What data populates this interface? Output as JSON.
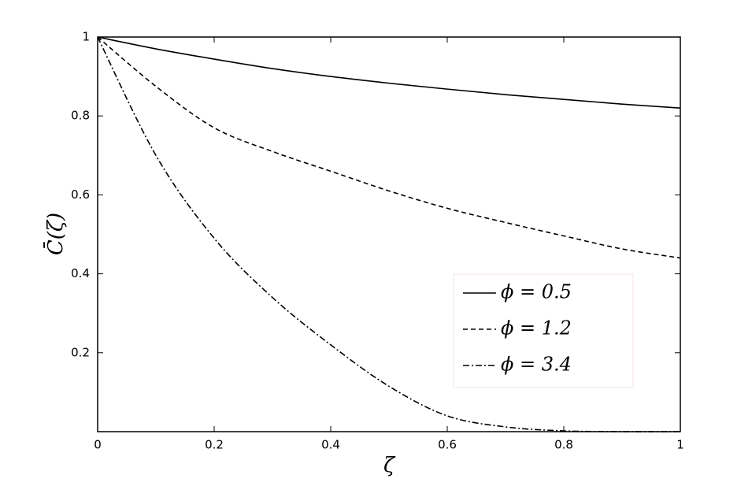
{
  "chart_data": {
    "type": "line",
    "xlabel": "ζ",
    "ylabel": "C̄(ζ)",
    "x": [
      0,
      0.1,
      0.2,
      0.3,
      0.4,
      0.5,
      0.6,
      0.7,
      0.8,
      0.9,
      1
    ],
    "series": [
      {
        "name": "ϕ = 0.5",
        "color": "#000000",
        "dash": "solid",
        "values": [
          1,
          0.97,
          0.944,
          0.92,
          0.9,
          0.883,
          0.868,
          0.854,
          0.842,
          0.83,
          0.82
        ]
      },
      {
        "name": "ϕ = 1.2",
        "color": "#000000",
        "dash": "dashed",
        "values": [
          1,
          0.875,
          0.77,
          0.71,
          0.66,
          0.61,
          0.566,
          0.53,
          0.496,
          0.463,
          0.44
        ]
      },
      {
        "name": "ϕ = 3.4",
        "color": "#000000",
        "dash": "dashdot",
        "values": [
          1,
          0.7,
          0.49,
          0.34,
          0.22,
          0.115,
          0.04,
          0.012,
          0.002,
          0,
          0
        ]
      }
    ],
    "xlim": [
      0,
      1
    ],
    "ylim": [
      0,
      1
    ],
    "xticks": [
      0,
      0.2,
      0.4,
      0.6,
      0.8,
      1
    ],
    "yticks": [
      0.2,
      0.4,
      0.6,
      0.8,
      1
    ],
    "grid": false,
    "legend": "lower right"
  }
}
